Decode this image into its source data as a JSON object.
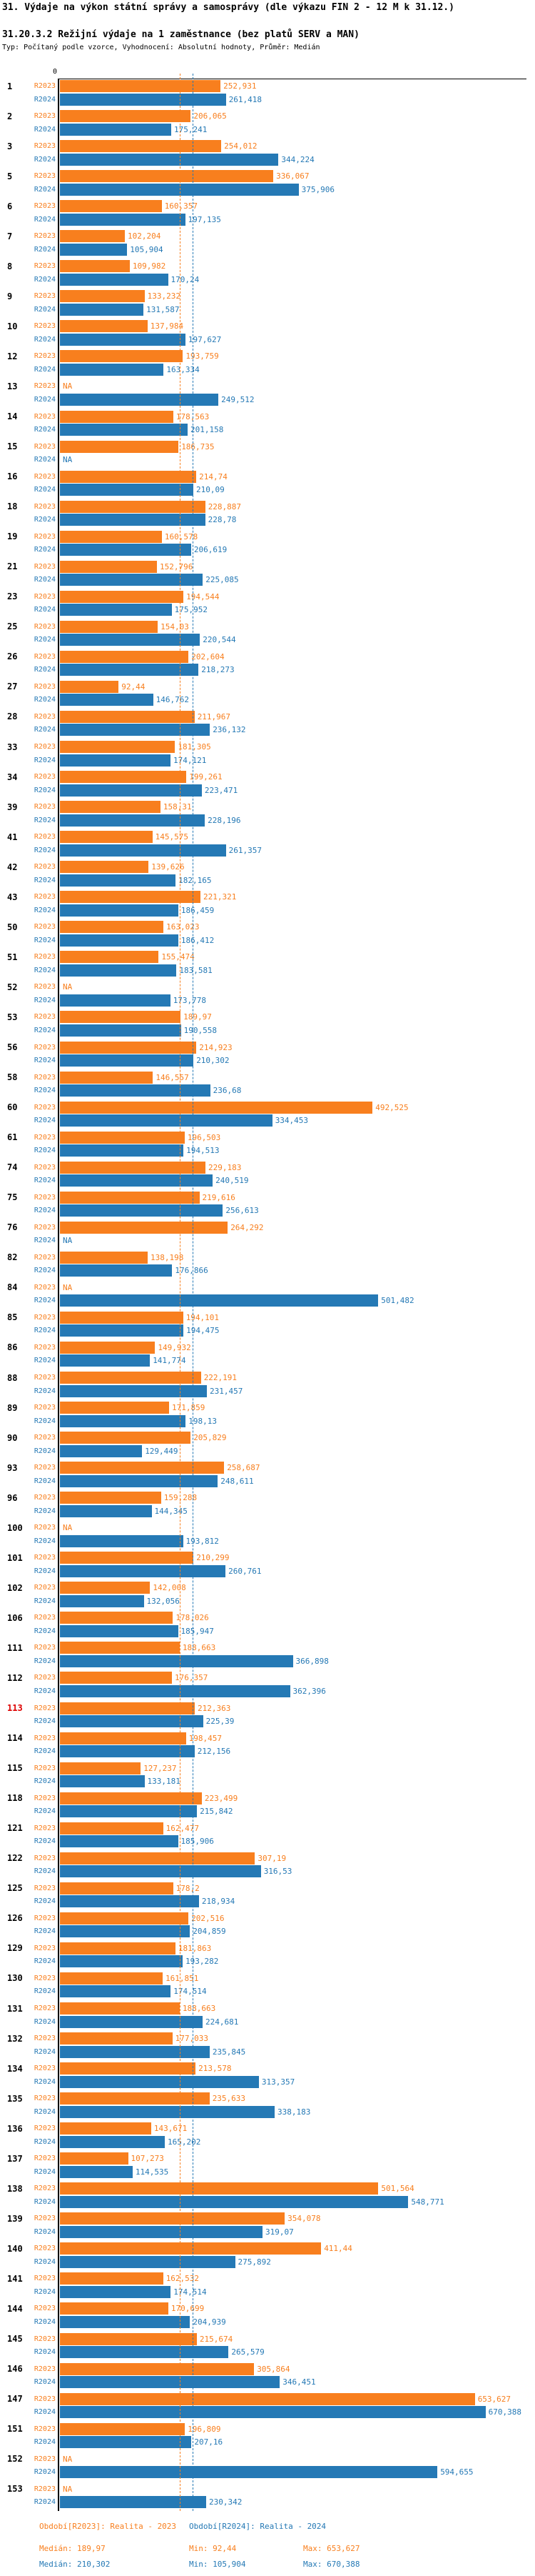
{
  "header": {
    "title": "31. Výdaje na výkon státní správy a samosprávy (dle výkazu FIN 2 - 12 M k 31.12.)",
    "subtitle": "31.20.3.2 Režijní výdaje na 1 zaměstnance (bez platů SERV a MAN)",
    "type_line": "Typ: Počítaný podle vzorce, Vyhodnocení: Absolutní hodnoty, Průměr: Medián"
  },
  "axis": {
    "zero_label": "0",
    "xlim": [
      0,
      733
    ]
  },
  "colors": {
    "r2023": "#f87f1e",
    "r2024": "#2579b5",
    "highlight_number": "#dd0000",
    "axis": "#000000"
  },
  "medians": {
    "r2023": 189.97,
    "r2024": 210.302
  },
  "chart_data": {
    "type": "bar",
    "orientation": "horizontal",
    "xlim": [
      0,
      733
    ],
    "grid": false,
    "legend_position": "bottom",
    "series_labels": [
      "R2023",
      "R2024"
    ],
    "median_lines": {
      "R2023": 189.97,
      "R2024": 210.302
    },
    "na_text": "NA",
    "groups": [
      {
        "id": "1",
        "r2023": "252,931",
        "r2024": "261,418"
      },
      {
        "id": "2",
        "r2023": "206,065",
        "r2024": "175,241"
      },
      {
        "id": "3",
        "r2023": "254,012",
        "r2024": "344,224"
      },
      {
        "id": "5",
        "r2023": "336,067",
        "r2024": "375,906"
      },
      {
        "id": "6",
        "r2023": "160,357",
        "r2024": "197,135"
      },
      {
        "id": "7",
        "r2023": "102,204",
        "r2024": "105,904"
      },
      {
        "id": "8",
        "r2023": "109,982",
        "r2024": "170,24"
      },
      {
        "id": "9",
        "r2023": "133,232",
        "r2024": "131,587"
      },
      {
        "id": "10",
        "r2023": "137,984",
        "r2024": "197,627"
      },
      {
        "id": "12",
        "r2023": "193,759",
        "r2024": "163,334"
      },
      {
        "id": "13",
        "r2023": "NA",
        "r2024": "249,512"
      },
      {
        "id": "14",
        "r2023": "178,563",
        "r2024": "201,158"
      },
      {
        "id": "15",
        "r2023": "186,735",
        "r2024": "NA"
      },
      {
        "id": "16",
        "r2023": "214,74",
        "r2024": "210,09"
      },
      {
        "id": "18",
        "r2023": "228,887",
        "r2024": "228,78"
      },
      {
        "id": "19",
        "r2023": "160,578",
        "r2024": "206,619"
      },
      {
        "id": "21",
        "r2023": "152,796",
        "r2024": "225,085"
      },
      {
        "id": "23",
        "r2023": "194,544",
        "r2024": "175,952"
      },
      {
        "id": "25",
        "r2023": "154,03",
        "r2024": "220,544"
      },
      {
        "id": "26",
        "r2023": "202,604",
        "r2024": "218,273"
      },
      {
        "id": "27",
        "r2023": "92,44",
        "r2024": "146,762"
      },
      {
        "id": "28",
        "r2023": "211,967",
        "r2024": "236,132"
      },
      {
        "id": "33",
        "r2023": "181,305",
        "r2024": "174,121"
      },
      {
        "id": "34",
        "r2023": "199,261",
        "r2024": "223,471"
      },
      {
        "id": "39",
        "r2023": "158,31",
        "r2024": "228,196"
      },
      {
        "id": "41",
        "r2023": "145,575",
        "r2024": "261,357"
      },
      {
        "id": "42",
        "r2023": "139,626",
        "r2024": "182,165"
      },
      {
        "id": "43",
        "r2023": "221,321",
        "r2024": "186,459"
      },
      {
        "id": "50",
        "r2023": "163,023",
        "r2024": "186,412"
      },
      {
        "id": "51",
        "r2023": "155,474",
        "r2024": "183,581"
      },
      {
        "id": "52",
        "r2023": "NA",
        "r2024": "173,778"
      },
      {
        "id": "53",
        "r2023": "189,97",
        "r2024": "190,558"
      },
      {
        "id": "56",
        "r2023": "214,923",
        "r2024": "210,302"
      },
      {
        "id": "58",
        "r2023": "146,557",
        "r2024": "236,68"
      },
      {
        "id": "60",
        "r2023": "492,525",
        "r2024": "334,453"
      },
      {
        "id": "61",
        "r2023": "196,503",
        "r2024": "194,513"
      },
      {
        "id": "74",
        "r2023": "229,183",
        "r2024": "240,519"
      },
      {
        "id": "75",
        "r2023": "219,616",
        "r2024": "256,613"
      },
      {
        "id": "76",
        "r2023": "264,292",
        "r2024": "NA"
      },
      {
        "id": "82",
        "r2023": "138,198",
        "r2024": "176,866"
      },
      {
        "id": "84",
        "r2023": "NA",
        "r2024": "501,482"
      },
      {
        "id": "85",
        "r2023": "194,101",
        "r2024": "194,475"
      },
      {
        "id": "86",
        "r2023": "149,932",
        "r2024": "141,774"
      },
      {
        "id": "88",
        "r2023": "222,191",
        "r2024": "231,457"
      },
      {
        "id": "89",
        "r2023": "171,859",
        "r2024": "198,13"
      },
      {
        "id": "90",
        "r2023": "205,829",
        "r2024": "129,449"
      },
      {
        "id": "93",
        "r2023": "258,687",
        "r2024": "248,611"
      },
      {
        "id": "96",
        "r2023": "159,288",
        "r2024": "144,345"
      },
      {
        "id": "100",
        "r2023": "NA",
        "r2024": "193,812"
      },
      {
        "id": "101",
        "r2023": "210,299",
        "r2024": "260,761"
      },
      {
        "id": "102",
        "r2023": "142,008",
        "r2024": "132,056"
      },
      {
        "id": "106",
        "r2023": "178,026",
        "r2024": "185,947"
      },
      {
        "id": "111",
        "r2023": "188,663",
        "r2024": "366,898"
      },
      {
        "id": "112",
        "r2023": "176,357",
        "r2024": "362,396"
      },
      {
        "id": "113",
        "r2023": "212,363",
        "r2024": "225,39",
        "highlight": true
      },
      {
        "id": "114",
        "r2023": "198,457",
        "r2024": "212,156"
      },
      {
        "id": "115",
        "r2023": "127,237",
        "r2024": "133,181"
      },
      {
        "id": "118",
        "r2023": "223,499",
        "r2024": "215,842"
      },
      {
        "id": "121",
        "r2023": "162,477",
        "r2024": "185,906"
      },
      {
        "id": "122",
        "r2023": "307,19",
        "r2024": "316,53"
      },
      {
        "id": "125",
        "r2023": "178,2",
        "r2024": "218,934"
      },
      {
        "id": "126",
        "r2023": "202,516",
        "r2024": "204,859"
      },
      {
        "id": "129",
        "r2023": "181,863",
        "r2024": "193,282"
      },
      {
        "id": "130",
        "r2023": "161,851",
        "r2024": "174,514"
      },
      {
        "id": "131",
        "r2023": "188,663",
        "r2024": "224,681"
      },
      {
        "id": "132",
        "r2023": "177,033",
        "r2024": "235,845"
      },
      {
        "id": "134",
        "r2023": "213,578",
        "r2024": "313,357"
      },
      {
        "id": "135",
        "r2023": "235,633",
        "r2024": "338,183"
      },
      {
        "id": "136",
        "r2023": "143,671",
        "r2024": "165,202"
      },
      {
        "id": "137",
        "r2023": "107,273",
        "r2024": "114,535"
      },
      {
        "id": "138",
        "r2023": "501,564",
        "r2024": "548,771"
      },
      {
        "id": "139",
        "r2023": "354,078",
        "r2024": "319,07"
      },
      {
        "id": "140",
        "r2023": "411,44",
        "r2024": "275,892"
      },
      {
        "id": "141",
        "r2023": "162,532",
        "r2024": "174,514"
      },
      {
        "id": "144",
        "r2023": "170,699",
        "r2024": "204,939"
      },
      {
        "id": "145",
        "r2023": "215,674",
        "r2024": "265,579"
      },
      {
        "id": "146",
        "r2023": "305,864",
        "r2024": "346,451"
      },
      {
        "id": "147",
        "r2023": "653,627",
        "r2024": "670,388"
      },
      {
        "id": "151",
        "r2023": "196,809",
        "r2024": "207,16"
      },
      {
        "id": "152",
        "r2023": "NA",
        "r2024": "594,655"
      },
      {
        "id": "153",
        "r2023": "NA",
        "r2024": "230,342"
      }
    ]
  },
  "footer": {
    "r2023": {
      "period": "Období[R2023]: Realita - 2023",
      "median": "Medián: 189,97",
      "min": "Min: 92,44",
      "max": "Max: 653,627"
    },
    "r2024": {
      "period": "Období[R2024]: Realita - 2024",
      "median": "Medián: 210,302",
      "min": "Min: 105,904",
      "max": "Max: 670,388"
    }
  }
}
